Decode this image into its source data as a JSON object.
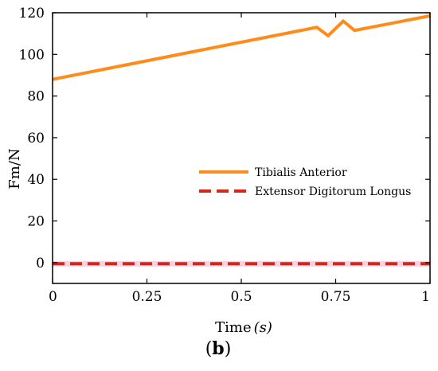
{
  "chart_data": {
    "type": "line",
    "xlabel_text": "Time",
    "xlabel_unit": "(s)",
    "ylabel": "Fm/N",
    "panel_label_open": "(",
    "panel_label_letter": "b",
    "panel_label_close": ")",
    "xlim": [
      0,
      1
    ],
    "ylim": [
      -10,
      120
    ],
    "xticks": [
      0,
      0.25,
      0.5,
      0.75,
      1
    ],
    "xtick_labels": [
      "0",
      "0.25",
      "0.5",
      "0.75",
      "1"
    ],
    "yticks": [
      0,
      20,
      40,
      60,
      80,
      100,
      120
    ],
    "ytick_labels": [
      "0",
      "20",
      "40",
      "60",
      "80",
      "100",
      "120"
    ],
    "grid": false,
    "legend_position": "center-right",
    "series": [
      {
        "name": "Tibialis Anterior",
        "color": "#ff8c1a",
        "dash": "solid",
        "x": [
          0,
          0.7,
          0.73,
          0.77,
          0.8,
          1.0
        ],
        "y": [
          88,
          113,
          109,
          116,
          111.5,
          118.5
        ]
      },
      {
        "name": "Extensor Digitorum Longus",
        "color": "#cc2a1e",
        "dash": "dashed",
        "x": [
          0,
          1.0
        ],
        "y": [
          -0.5,
          -0.5
        ]
      }
    ]
  }
}
